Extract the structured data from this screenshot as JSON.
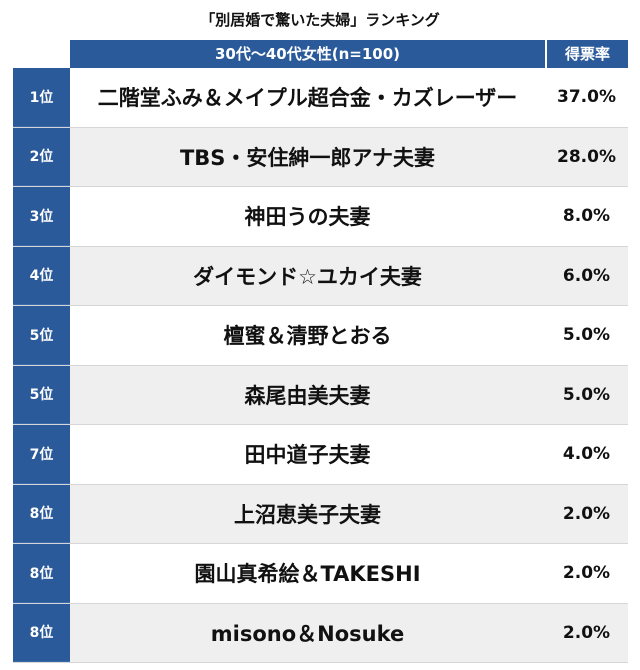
{
  "chart_data": {
    "type": "table",
    "title": "「別居婚で驚いた夫婦」ランキング",
    "columns": [
      "30代〜40代女性(n=100)",
      "得票率"
    ],
    "rows": [
      {
        "rank": "1位",
        "name": "二階堂ふみ＆メイプル超合金・カズレーザー",
        "value": 37.0,
        "label": "37.0%"
      },
      {
        "rank": "2位",
        "name": "TBS・安住紳一郎アナ夫妻",
        "value": 28.0,
        "label": "28.0%"
      },
      {
        "rank": "3位",
        "name": "神田うの夫妻",
        "value": 8.0,
        "label": "8.0%"
      },
      {
        "rank": "4位",
        "name": "ダイモンド☆ユカイ夫妻",
        "value": 6.0,
        "label": "6.0%"
      },
      {
        "rank": "5位",
        "name": "檀蜜＆清野とおる",
        "value": 5.0,
        "label": "5.0%"
      },
      {
        "rank": "5位",
        "name": "森尾由美夫妻",
        "value": 5.0,
        "label": "5.0%"
      },
      {
        "rank": "7位",
        "name": "田中道子夫妻",
        "value": 4.0,
        "label": "4.0%"
      },
      {
        "rank": "8位",
        "name": "上沼恵美子夫妻",
        "value": 2.0,
        "label": "2.0%"
      },
      {
        "rank": "8位",
        "name": "園山真希絵＆TAKESHI",
        "value": 2.0,
        "label": "2.0%"
      },
      {
        "rank": "8位",
        "name": "misono＆Nosuke",
        "value": 2.0,
        "label": "2.0%"
      }
    ]
  },
  "colors": {
    "header_bg": "#2a5a9a",
    "rank_bg": "#2a5a9a",
    "row_alt_bg": "#efefef"
  }
}
